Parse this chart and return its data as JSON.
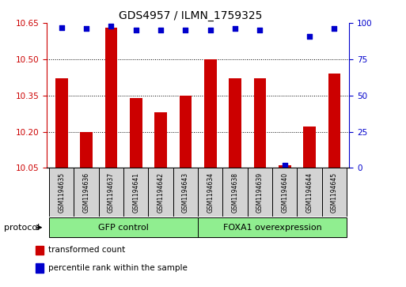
{
  "title": "GDS4957 / ILMN_1759325",
  "samples": [
    "GSM1194635",
    "GSM1194636",
    "GSM1194637",
    "GSM1194641",
    "GSM1194642",
    "GSM1194643",
    "GSM1194634",
    "GSM1194638",
    "GSM1194639",
    "GSM1194640",
    "GSM1194644",
    "GSM1194645"
  ],
  "transformed_counts": [
    10.42,
    10.2,
    10.63,
    10.34,
    10.28,
    10.35,
    10.5,
    10.42,
    10.42,
    10.06,
    10.22,
    10.44
  ],
  "percentile_ranks": [
    97,
    96,
    98,
    95,
    95,
    95,
    95,
    96,
    95,
    2,
    91,
    96
  ],
  "groups": [
    {
      "label": "GFP control",
      "indices": [
        0,
        1,
        2,
        3,
        4,
        5
      ],
      "color": "#90ee90"
    },
    {
      "label": "FOXA1 overexpression",
      "indices": [
        6,
        7,
        8,
        9,
        10,
        11
      ],
      "color": "#90ee90"
    }
  ],
  "ylim_left": [
    10.05,
    10.65
  ],
  "ylim_right": [
    0,
    100
  ],
  "yticks_left": [
    10.05,
    10.2,
    10.35,
    10.5,
    10.65
  ],
  "yticks_right": [
    0,
    25,
    50,
    75,
    100
  ],
  "bar_color": "#cc0000",
  "dot_color": "#0000cc",
  "bar_width": 0.5,
  "grid_color": "black",
  "sample_bg_color": "#d3d3d3",
  "legend_items": [
    {
      "label": "transformed count",
      "color": "#cc0000"
    },
    {
      "label": "percentile rank within the sample",
      "color": "#0000cc"
    }
  ],
  "ylabel_left_color": "#cc0000",
  "ylabel_right_color": "#0000cc",
  "protocol_label": "protocol"
}
